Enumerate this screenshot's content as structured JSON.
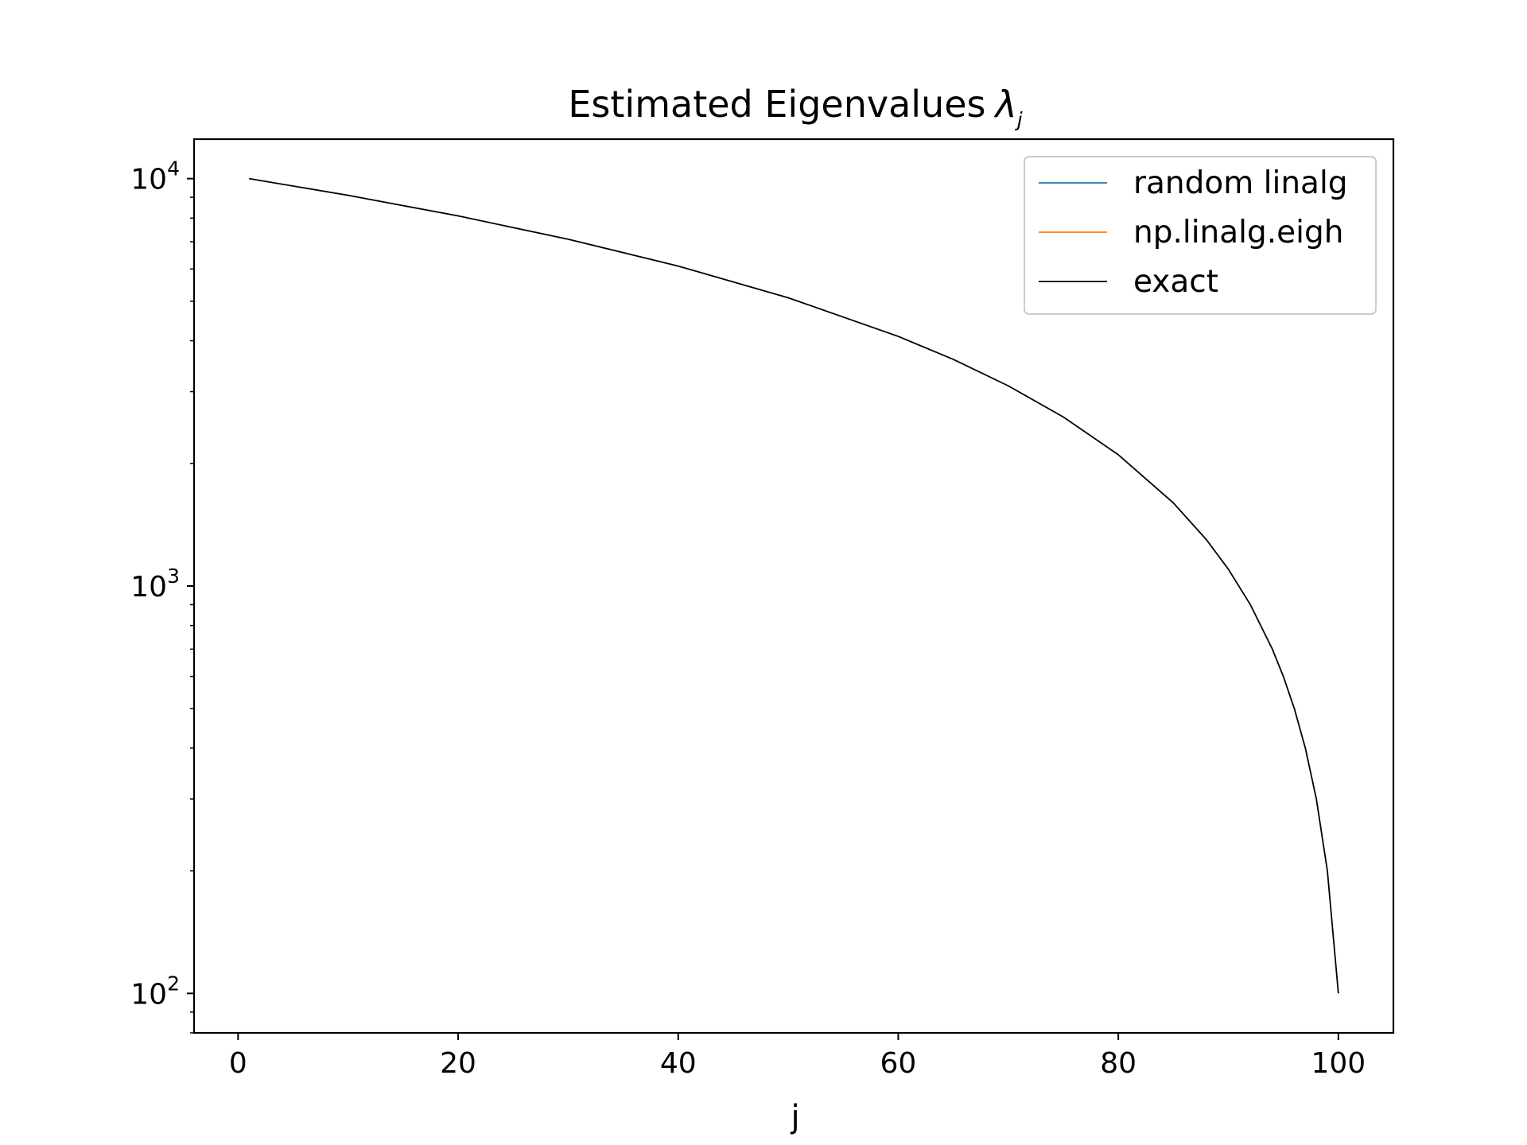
{
  "chart_data": {
    "type": "line",
    "title": "Estimated Eigenvalues",
    "title_symbol": "λ",
    "title_subscript": "j",
    "xlabel": "j",
    "ylabel": "",
    "xlim": [
      -4,
      105
    ],
    "ylim": [
      80,
      12500
    ],
    "y_scale": "log",
    "x_ticks": [
      0,
      20,
      40,
      60,
      80,
      100
    ],
    "x_tick_labels": [
      "0",
      "20",
      "40",
      "60",
      "80",
      "100"
    ],
    "y_ticks": [
      100,
      1000,
      10000
    ],
    "y_tick_labels": [
      {
        "base": "10",
        "exp": "2"
      },
      {
        "base": "10",
        "exp": "3"
      },
      {
        "base": "10",
        "exp": "4"
      }
    ],
    "grid": false,
    "legend_position": "top-right",
    "series": [
      {
        "name": "random linalg",
        "color": "#1f77b4",
        "x": [],
        "y": []
      },
      {
        "name": "np.linalg.eigh",
        "color": "#ff7f0e",
        "x": [],
        "y": []
      },
      {
        "name": "exact",
        "color": "#000000",
        "x": [
          1,
          10,
          20,
          30,
          40,
          50,
          60,
          65,
          70,
          75,
          80,
          85,
          88,
          90,
          92,
          94,
          95,
          96,
          97,
          98,
          99,
          100
        ],
        "y": [
          10000,
          9100,
          8100,
          7100,
          6100,
          5100,
          4100,
          3600,
          3100,
          2600,
          2100,
          1600,
          1300,
          1100,
          900,
          700,
          600,
          500,
          400,
          300,
          200,
          100
        ]
      }
    ]
  }
}
